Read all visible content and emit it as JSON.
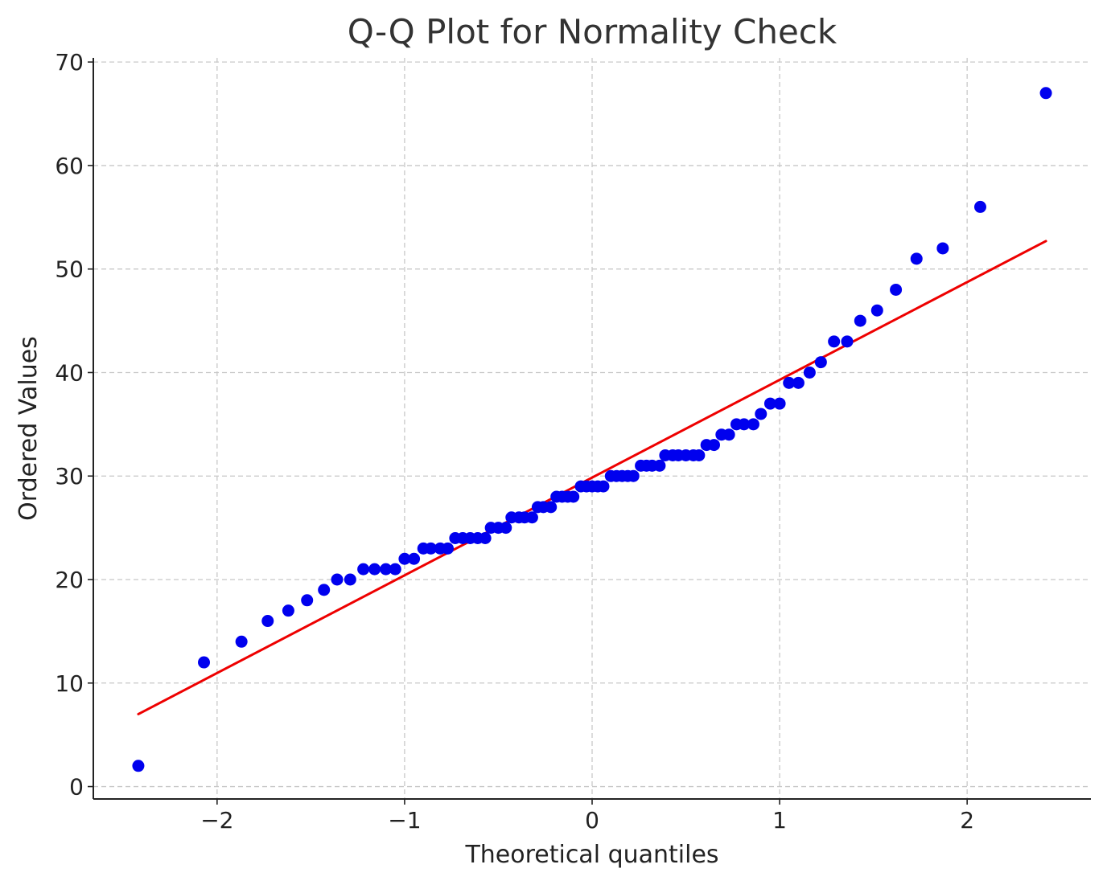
{
  "chart_data": {
    "type": "scatter",
    "title": "Q-Q Plot for Normality Check",
    "xlabel": "Theoretical quantiles",
    "ylabel": "Ordered Values",
    "xlim": [
      -2.66,
      2.66
    ],
    "ylim": [
      -1.2,
      70.4
    ],
    "xticks": [
      -2,
      -1,
      0,
      1,
      2
    ],
    "xtick_labels": [
      "−2",
      "−1",
      "0",
      "1",
      "2"
    ],
    "yticks": [
      0,
      10,
      20,
      30,
      40,
      50,
      60,
      70
    ],
    "ytick_labels": [
      "0",
      "10",
      "20",
      "30",
      "40",
      "50",
      "60",
      "70"
    ],
    "grid": true,
    "colors": {
      "points": "#0000ee",
      "fit_line": "#ee0000",
      "grid": "#c8c8c8",
      "axes": "#222222"
    },
    "series": [
      {
        "kind": "points",
        "points": [
          [
            -2.42,
            2
          ],
          [
            -2.07,
            12
          ],
          [
            -1.87,
            14
          ],
          [
            -1.73,
            16
          ],
          [
            -1.62,
            17
          ],
          [
            -1.52,
            18
          ],
          [
            -1.43,
            19
          ],
          [
            -1.36,
            20
          ],
          [
            -1.29,
            20
          ],
          [
            -1.22,
            21
          ],
          [
            -1.16,
            21
          ],
          [
            -1.1,
            21
          ],
          [
            -1.05,
            21
          ],
          [
            -1.0,
            22
          ],
          [
            -0.95,
            22
          ],
          [
            -0.9,
            23
          ],
          [
            -0.86,
            23
          ],
          [
            -0.81,
            23
          ],
          [
            -0.77,
            23
          ],
          [
            -0.73,
            24
          ],
          [
            -0.69,
            24
          ],
          [
            -0.65,
            24
          ],
          [
            -0.61,
            24
          ],
          [
            -0.57,
            24
          ],
          [
            -0.54,
            25
          ],
          [
            -0.5,
            25
          ],
          [
            -0.46,
            25
          ],
          [
            -0.43,
            26
          ],
          [
            -0.39,
            26
          ],
          [
            -0.36,
            26
          ],
          [
            -0.32,
            26
          ],
          [
            -0.29,
            27
          ],
          [
            -0.26,
            27
          ],
          [
            -0.22,
            27
          ],
          [
            -0.19,
            28
          ],
          [
            -0.16,
            28
          ],
          [
            -0.13,
            28
          ],
          [
            -0.1,
            28
          ],
          [
            -0.06,
            29
          ],
          [
            -0.03,
            29
          ],
          [
            0.0,
            29
          ],
          [
            0.03,
            29
          ],
          [
            0.06,
            29
          ],
          [
            0.1,
            30
          ],
          [
            0.13,
            30
          ],
          [
            0.16,
            30
          ],
          [
            0.19,
            30
          ],
          [
            0.22,
            30
          ],
          [
            0.26,
            31
          ],
          [
            0.29,
            31
          ],
          [
            0.32,
            31
          ],
          [
            0.36,
            31
          ],
          [
            0.39,
            32
          ],
          [
            0.43,
            32
          ],
          [
            0.46,
            32
          ],
          [
            0.5,
            32
          ],
          [
            0.54,
            32
          ],
          [
            0.57,
            32
          ],
          [
            0.61,
            33
          ],
          [
            0.65,
            33
          ],
          [
            0.69,
            34
          ],
          [
            0.73,
            34
          ],
          [
            0.77,
            35
          ],
          [
            0.81,
            35
          ],
          [
            0.86,
            35
          ],
          [
            0.9,
            36
          ],
          [
            0.95,
            37
          ],
          [
            1.0,
            37
          ],
          [
            1.05,
            39
          ],
          [
            1.1,
            39
          ],
          [
            1.16,
            40
          ],
          [
            1.22,
            41
          ],
          [
            1.29,
            43
          ],
          [
            1.36,
            43
          ],
          [
            1.43,
            45
          ],
          [
            1.52,
            46
          ],
          [
            1.62,
            48
          ],
          [
            1.73,
            51
          ],
          [
            1.87,
            52
          ],
          [
            2.07,
            56
          ],
          [
            2.42,
            67
          ]
        ]
      },
      {
        "kind": "fit_line",
        "x": [
          -2.42,
          2.42
        ],
        "y": [
          7.0,
          52.7
        ]
      }
    ]
  }
}
